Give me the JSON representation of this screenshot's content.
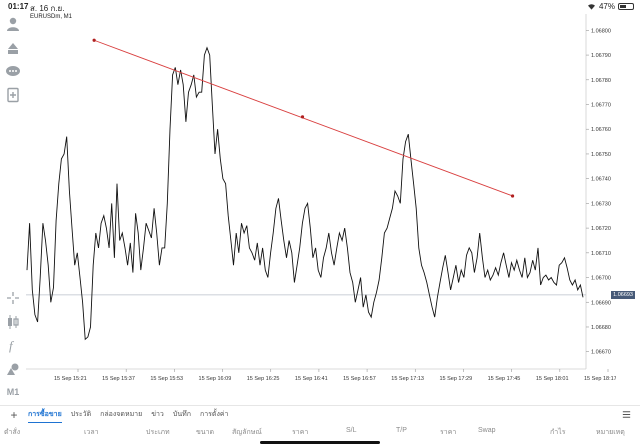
{
  "status": {
    "time": "01:17",
    "date": "ส. 16 ก.ย.",
    "battery": "47%",
    "battery_level": 0.47
  },
  "toolbar": {
    "icons": [
      "accounts-icon",
      "trade-icon",
      "chat-icon",
      "news-icon",
      "crosshair-icon",
      "indicators-icon",
      "function-icon",
      "objects-icon"
    ],
    "timeframe": "M1"
  },
  "chart": {
    "symbol": "EURUSDm, M1",
    "current_price": "1.06693",
    "price_axis": [
      "1.06800",
      "1.06790",
      "1.06780",
      "1.06770",
      "1.06760",
      "1.06750",
      "1.06740",
      "1.06730",
      "1.06720",
      "1.06710",
      "1.06700",
      "1.06690",
      "1.06680",
      "1.06670"
    ],
    "time_axis": [
      "15 Sep 15:21",
      "15 Sep 15:37",
      "15 Sep 15:53",
      "15 Sep 16:09",
      "15 Sep 16:25",
      "15 Sep 16:41",
      "15 Sep 16:57",
      "15 Sep 17:13",
      "15 Sep 17:29",
      "15 Sep 17:45",
      "15 Sep 18:01",
      "15 Sep 18:17"
    ],
    "trendline": {
      "color": "#d94040",
      "points": [
        [
          16.3,
          1.06796
        ],
        [
          66.9,
          1.06765
        ],
        [
          117.9,
          1.06733
        ]
      ]
    },
    "series": [
      1.06703,
      1.06722,
      1.06695,
      1.06685,
      1.06682,
      1.067,
      1.06722,
      1.06715,
      1.06705,
      1.0669,
      1.06696,
      1.06723,
      1.06738,
      1.06748,
      1.0675,
      1.06757,
      1.06735,
      1.0672,
      1.06705,
      1.0671,
      1.067,
      1.0669,
      1.06675,
      1.06676,
      1.0668,
      1.06705,
      1.06718,
      1.06712,
      1.06722,
      1.06725,
      1.0672,
      1.06712,
      1.0673,
      1.06708,
      1.06738,
      1.06715,
      1.06718,
      1.06712,
      1.06705,
      1.06714,
      1.06702,
      1.06726,
      1.06718,
      1.06703,
      1.06712,
      1.06722,
      1.06719,
      1.06716,
      1.06728,
      1.06718,
      1.06705,
      1.06712,
      1.06712,
      1.0673,
      1.0676,
      1.06782,
      1.06785,
      1.06778,
      1.06784,
      1.06778,
      1.06763,
      1.06775,
      1.06778,
      1.06782,
      1.06773,
      1.06775,
      1.06775,
      1.0679,
      1.06793,
      1.0679,
      1.0677,
      1.0675,
      1.0676,
      1.06748,
      1.0674,
      1.06738,
      1.06725,
      1.06715,
      1.06705,
      1.06718,
      1.0671,
      1.06722,
      1.06718,
      1.06721,
      1.06712,
      1.0671,
      1.06707,
      1.06714,
      1.06705,
      1.06712,
      1.06703,
      1.067,
      1.0671,
      1.06718,
      1.06728,
      1.06732,
      1.06723,
      1.06715,
      1.06708,
      1.06715,
      1.0671,
      1.06698,
      1.06705,
      1.06712,
      1.06722,
      1.06728,
      1.0673,
      1.0672,
      1.06708,
      1.06712,
      1.06703,
      1.067,
      1.06708,
      1.06712,
      1.06718,
      1.0671,
      1.06705,
      1.06712,
      1.06718,
      1.06715,
      1.0672,
      1.06712,
      1.06702,
      1.06698,
      1.0669,
      1.06695,
      1.067,
      1.06688,
      1.06693,
      1.06686,
      1.06684,
      1.0669,
      1.06694,
      1.06699,
      1.06708,
      1.06718,
      1.0672,
      1.06724,
      1.06728,
      1.06735,
      1.06733,
      1.0673,
      1.06748,
      1.06755,
      1.06758,
      1.06748,
      1.06738,
      1.06728,
      1.06712,
      1.06705,
      1.06702,
      1.06698,
      1.06693,
      1.06688,
      1.06684,
      1.06692,
      1.06698,
      1.06704,
      1.06709,
      1.06702,
      1.06695,
      1.067,
      1.06705,
      1.06698,
      1.06703,
      1.067,
      1.06709,
      1.06712,
      1.0671,
      1.06702,
      1.06708,
      1.06718,
      1.06708,
      1.067,
      1.06703,
      1.06699,
      1.06701,
      1.06704,
      1.06701,
      1.06706,
      1.0671,
      1.06705,
      1.067,
      1.06706,
      1.06703,
      1.06707,
      1.06703,
      1.067,
      1.06708,
      1.067,
      1.06702,
      1.06707,
      1.06703,
      1.06712,
      1.06697,
      1.067,
      1.06701,
      1.06699,
      1.067,
      1.06698,
      1.06697,
      1.06705,
      1.06706,
      1.06708,
      1.06704,
      1.06699,
      1.06697,
      1.06699,
      1.06695,
      1.06697,
      1.06692
    ]
  },
  "tabs": {
    "add": "+",
    "items": [
      "การซื้อขาย",
      "ประวัติ",
      "กล่องจดหมาย",
      "ข่าว",
      "บันทึก",
      "การตั้งค่า"
    ]
  },
  "columns": [
    "ตำสั่ง",
    "เวลา",
    "ประเภท",
    "ขนาด",
    "สัญลักษณ์",
    "ราคา",
    "S/L",
    "T/P",
    "ราคา",
    "Swap",
    "กำไร",
    "หมายเหตุ"
  ]
}
